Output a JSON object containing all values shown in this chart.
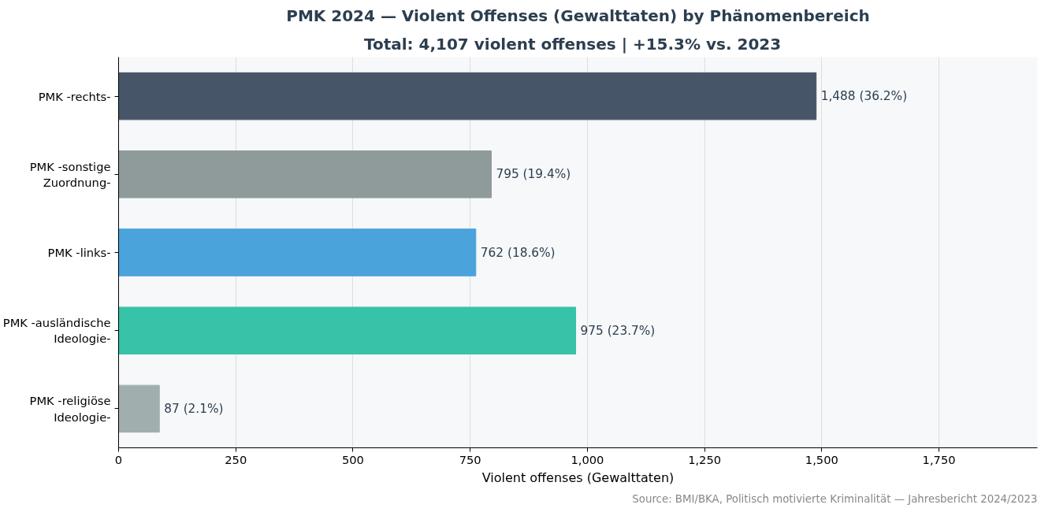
{
  "chart_data": {
    "type": "bar",
    "orientation": "horizontal",
    "title": "PMK 2024 — Violent Offenses (Gewalttaten) by Phänomenbereich",
    "subtitle": "Total: 4,107 violent offenses  |  +15.3% vs. 2023",
    "xlabel": "Violent offenses (Gewalttaten)",
    "categories": [
      "PMK -rechts-",
      "PMK -sonstige\nZuordnung-",
      "PMK -links-",
      "PMK -ausländische\nIdeologie-",
      "PMK -religiöse\nIdeologie-"
    ],
    "values": [
      1488,
      795,
      762,
      975,
      87
    ],
    "colors": [
      "#465668",
      "#8f9b9b",
      "#4ba3dc",
      "#36c3a8",
      "#a1aeae"
    ],
    "value_labels": [
      "1,488  (36.2%)",
      "795  (19.4%)",
      "762  (18.6%)",
      "975  (23.7%)",
      "87  (2.1%)"
    ],
    "xlim": [
      0,
      1960
    ],
    "xticks": [
      0,
      {
        "value": 250,
        "label": "250"
      },
      {
        "value": 500,
        "label": "500"
      },
      {
        "value": 750,
        "label": "750"
      },
      {
        "value": 1000,
        "label": "1,000"
      },
      {
        "value": 1250,
        "label": "1,250"
      },
      {
        "value": 1500,
        "label": "1,500"
      },
      {
        "value": 1750,
        "label": "1,750"
      }
    ],
    "grid": "x",
    "annotations": [
      "Source: BMI/BKA, Politisch motivierte Kriminalität — Jahresbericht 2024/2023"
    ]
  }
}
